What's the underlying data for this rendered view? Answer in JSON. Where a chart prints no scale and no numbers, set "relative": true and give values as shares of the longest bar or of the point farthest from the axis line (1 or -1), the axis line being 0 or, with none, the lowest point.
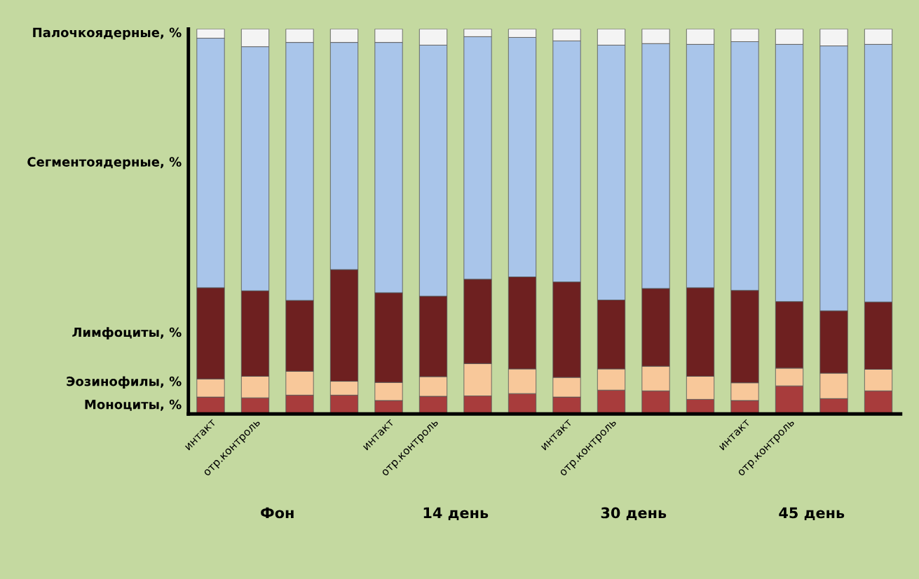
{
  "chart_data": {
    "type": "bar",
    "stacked": true,
    "relative": true,
    "legend": false,
    "grid": false,
    "categories": [
      "интакт",
      "отр.контроль",
      null,
      null,
      "интакт",
      "отр.контроль",
      null,
      null,
      "интакт",
      "отр.контроль",
      null,
      null,
      "интакт",
      "отр.контроль",
      null,
      null
    ],
    "series": [
      {
        "name": "Моноциты, %",
        "color": "#a83c3c",
        "values": [
          0.044,
          0.042,
          0.049,
          0.049,
          0.035,
          0.046,
          0.047,
          0.053,
          0.044,
          0.062,
          0.06,
          0.038,
          0.035,
          0.073,
          0.04,
          0.06
        ]
      },
      {
        "name": "Эозинофилы, %",
        "color": "#f8c89a",
        "values": [
          0.047,
          0.056,
          0.062,
          0.036,
          0.047,
          0.051,
          0.084,
          0.064,
          0.051,
          0.055,
          0.064,
          0.06,
          0.046,
          0.046,
          0.066,
          0.056
        ]
      },
      {
        "name": "Лимфоциты, %",
        "color": "#6e2020",
        "values": [
          0.237,
          0.222,
          0.184,
          0.29,
          0.233,
          0.209,
          0.219,
          0.239,
          0.248,
          0.179,
          0.202,
          0.23,
          0.24,
          0.173,
          0.162,
          0.175
        ]
      },
      {
        "name": "Сегментоядерные, %",
        "color": "#a9c5ea",
        "values": [
          0.648,
          0.634,
          0.67,
          0.59,
          0.65,
          0.652,
          0.63,
          0.622,
          0.626,
          0.662,
          0.636,
          0.632,
          0.646,
          0.668,
          0.688,
          0.669
        ]
      },
      {
        "name": "Палочкоядерные, %",
        "color": "#f4f4f4",
        "values": [
          0.024,
          0.046,
          0.035,
          0.035,
          0.035,
          0.042,
          0.02,
          0.022,
          0.031,
          0.042,
          0.038,
          0.04,
          0.033,
          0.04,
          0.044,
          0.04
        ]
      }
    ],
    "annotations": [
      "Фон",
      "14 день",
      "30 день",
      "45 день"
    ]
  }
}
